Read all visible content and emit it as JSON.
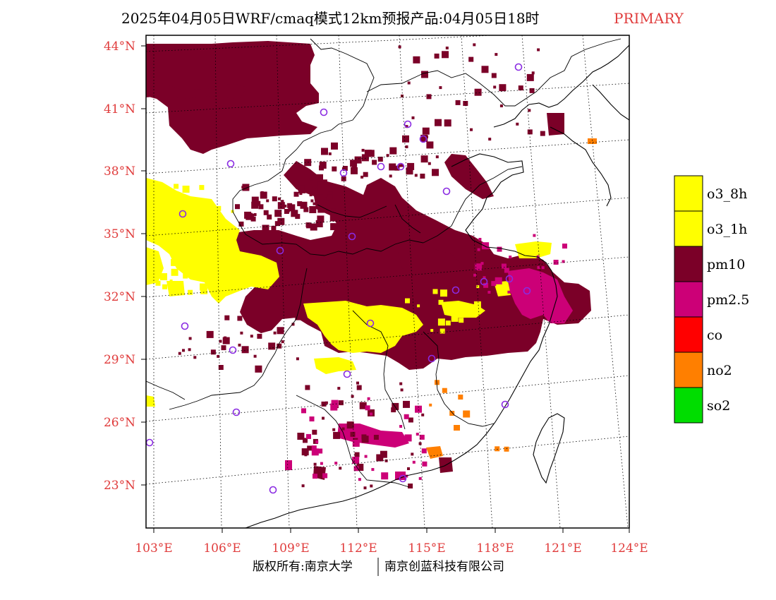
{
  "header": {
    "title": "2025年04月05日WRF/cmaq模式12km预报产品:04月05日18时",
    "tag": "PRIMARY",
    "tag_color": "#e03c3c"
  },
  "axes": {
    "lat_labels": [
      "44°N",
      "41°N",
      "38°N",
      "35°N",
      "32°N",
      "29°N",
      "26°N",
      "23°N"
    ],
    "lon_labels": [
      "103°E",
      "106°E",
      "109°E",
      "112°E",
      "115°E",
      "118°E",
      "121°E",
      "124°E"
    ],
    "label_color": "#e03c3c"
  },
  "legend": {
    "items": [
      {
        "label": "o3_8h",
        "color": "#ffff00"
      },
      {
        "label": "o3_1h",
        "color": "#ffff00"
      },
      {
        "label": "pm10",
        "color": "#7b0028"
      },
      {
        "label": "pm2.5",
        "color": "#cc0077"
      },
      {
        "label": "co",
        "color": "#ff0000"
      },
      {
        "label": "no2",
        "color": "#ff7f00"
      },
      {
        "label": "so2",
        "color": "#00dd00"
      }
    ]
  },
  "map": {
    "colors": {
      "pm10": "#7b0028",
      "pm25": "#cc0077",
      "o3": "#ffff00",
      "no2": "#ff7f00",
      "station": "#8a2be2",
      "boundary": "#000000"
    },
    "station_count": 26
  },
  "footer": {
    "left": "版权所有:南京大学",
    "right": "南京创蓝科技有限公司"
  }
}
